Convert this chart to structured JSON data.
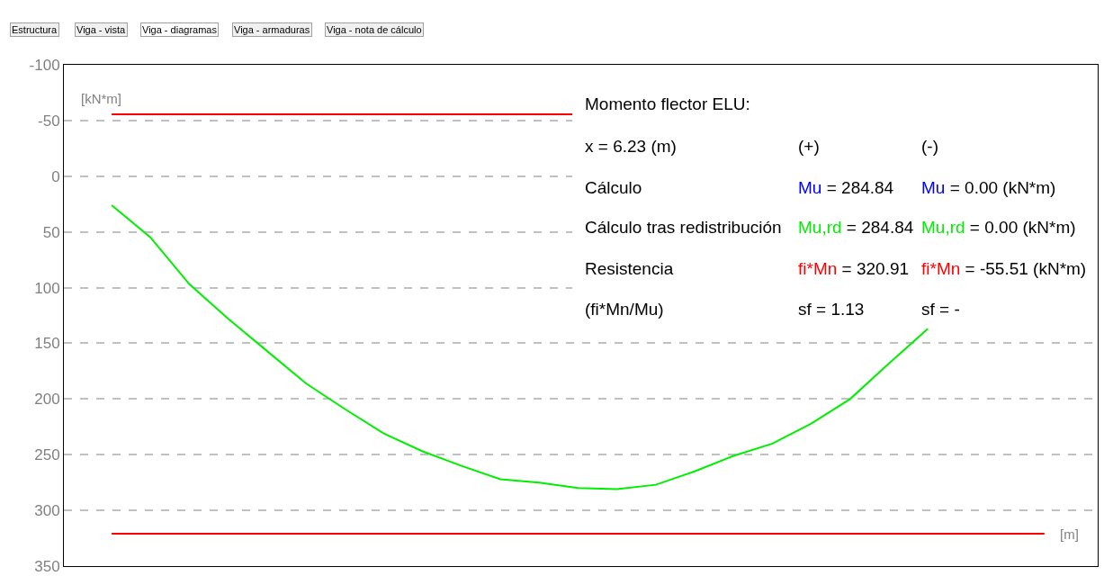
{
  "chart_data": {
    "type": "line",
    "ylabel": "[kN*m]",
    "xlabel": "[m]",
    "categories": [
      null,
      null,
      null,
      null,
      null,
      null,
      null,
      null,
      null,
      null,
      null,
      null,
      null,
      null,
      null,
      null,
      null,
      null,
      null,
      null,
      null,
      null,
      null,
      null,
      null
    ],
    "series": [
      {
        "color": "#00ee00",
        "values": [
          26,
          55,
          97,
          128,
          157,
          186,
          209,
          231,
          247,
          260,
          272,
          275,
          280,
          281,
          277,
          265,
          251,
          240,
          222,
          200,
          168,
          137,
          null,
          null,
          null
        ]
      }
    ],
    "ylim": [
      350,
      -100
    ],
    "yticks": [
      -100,
      -50,
      0,
      50,
      100,
      150,
      200,
      250,
      300,
      350
    ],
    "grid": "y",
    "legend": false,
    "marker": "none",
    "line_style": "solid",
    "ref_lines": [
      {
        "axis": "y",
        "value": -55.51,
        "color": "#ff0000"
      },
      {
        "axis": "y",
        "value": 320.91,
        "color": "#ff0000"
      }
    ],
    "annotations": [
      "Estructura",
      "Viga - vista",
      "Viga - diagramas",
      "Viga - armaduras",
      "Viga - nota de cálculo",
      "Momento flector ELU:",
      "x = 6.23 (m)",
      "(+)",
      "(-)",
      "Cálculo",
      "Mu = 284.84",
      "Mu = 0.00 (kN*m)",
      "Cálculo tras redistribución",
      "Mu,rd = 284.84",
      "Mu,rd = 0.00 (kN*m)",
      "Resistencia",
      "fi*Mn = 320.91",
      "fi*Mn = -55.51 (kN*m)",
      "(fi*Mn/Mu)",
      "sf = 1.13",
      "sf = -"
    ]
  }
}
